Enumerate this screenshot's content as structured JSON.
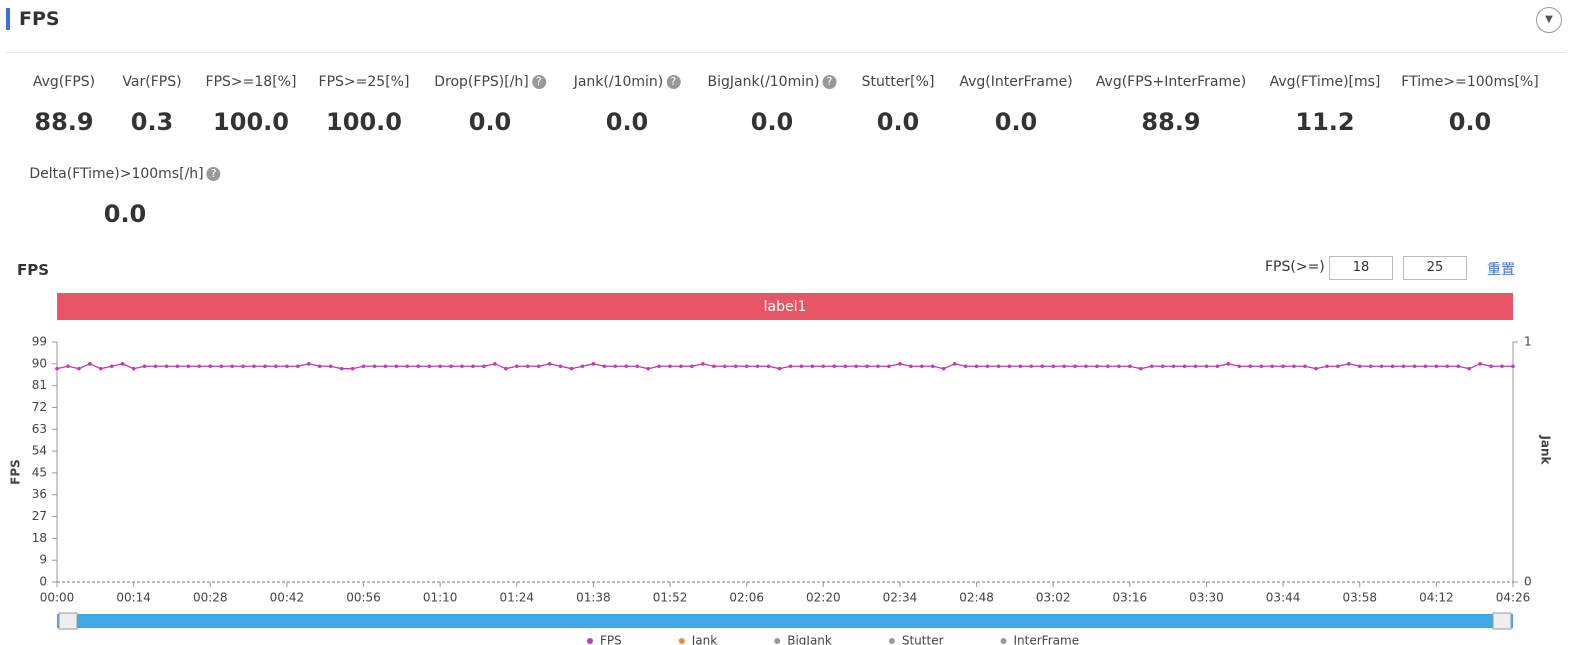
{
  "header": {
    "title": "FPS"
  },
  "metrics": [
    {
      "label": "Avg(FPS)",
      "value": "88.9"
    },
    {
      "label": "Var(FPS)",
      "value": "0.3"
    },
    {
      "label": "FPS>=18[%]",
      "value": "100.0"
    },
    {
      "label": "FPS>=25[%]",
      "value": "100.0"
    },
    {
      "label": "Drop(FPS)[/h]",
      "value": "0.0",
      "help": true
    },
    {
      "label": "Jank(/10min)",
      "value": "0.0",
      "help": true
    },
    {
      "label": "BigJank(/10min)",
      "value": "0.0",
      "help": true
    },
    {
      "label": "Stutter[%]",
      "value": "0.0"
    },
    {
      "label": "Avg(InterFrame)",
      "value": "0.0"
    },
    {
      "label": "Avg(FPS+InterFrame)",
      "value": "88.9"
    },
    {
      "label": "Avg(FTime)[ms]",
      "value": "11.2"
    },
    {
      "label": "FTime>=100ms[%]",
      "value": "0.0"
    },
    {
      "label": "Delta(FTime)>100ms[/h]",
      "value": "0.0",
      "help": true
    }
  ],
  "controls": {
    "title": "FPS",
    "threshold_label": "FPS(>=)",
    "threshold_low": "18",
    "threshold_high": "25",
    "reset": "重置"
  },
  "chart_data": {
    "type": "line",
    "band_label": "label1",
    "band_color": "#e85566",
    "ylabel": "FPS",
    "y2label": "Jank",
    "ylim": [
      0,
      99
    ],
    "yticks": [
      0,
      9,
      18,
      27,
      36,
      45,
      54,
      63,
      72,
      81,
      90,
      99
    ],
    "y2lim": [
      0,
      1
    ],
    "y2ticks": [
      0,
      1
    ],
    "xlim": [
      0,
      266
    ],
    "xticks": [
      {
        "value": 0,
        "label": "00:00"
      },
      {
        "value": 14,
        "label": "00:14"
      },
      {
        "value": 28,
        "label": "00:28"
      },
      {
        "value": 42,
        "label": "00:42"
      },
      {
        "value": 56,
        "label": "00:56"
      },
      {
        "value": 70,
        "label": "01:10"
      },
      {
        "value": 84,
        "label": "01:24"
      },
      {
        "value": 98,
        "label": "01:38"
      },
      {
        "value": 112,
        "label": "01:52"
      },
      {
        "value": 126,
        "label": "02:06"
      },
      {
        "value": 140,
        "label": "02:20"
      },
      {
        "value": 154,
        "label": "02:34"
      },
      {
        "value": 168,
        "label": "02:48"
      },
      {
        "value": 182,
        "label": "03:02"
      },
      {
        "value": 196,
        "label": "03:16"
      },
      {
        "value": 210,
        "label": "03:30"
      },
      {
        "value": 224,
        "label": "03:44"
      },
      {
        "value": 238,
        "label": "03:58"
      },
      {
        "value": 252,
        "label": "04:12"
      },
      {
        "value": 266,
        "label": "04:26"
      }
    ],
    "x": [
      0,
      2,
      4,
      6,
      8,
      10,
      12,
      14,
      16,
      18,
      20,
      22,
      24,
      26,
      28,
      30,
      32,
      34,
      36,
      38,
      40,
      42,
      44,
      46,
      48,
      50,
      52,
      54,
      56,
      58,
      60,
      62,
      64,
      66,
      68,
      70,
      72,
      74,
      76,
      78,
      80,
      82,
      84,
      86,
      88,
      90,
      92,
      94,
      96,
      98,
      100,
      102,
      104,
      106,
      108,
      110,
      112,
      114,
      116,
      118,
      120,
      122,
      124,
      126,
      128,
      130,
      132,
      134,
      136,
      138,
      140,
      142,
      144,
      146,
      148,
      150,
      152,
      154,
      156,
      158,
      160,
      162,
      164,
      166,
      168,
      170,
      172,
      174,
      176,
      178,
      180,
      182,
      184,
      186,
      188,
      190,
      192,
      194,
      196,
      198,
      200,
      202,
      204,
      206,
      208,
      210,
      212,
      214,
      216,
      218,
      220,
      222,
      224,
      226,
      228,
      230,
      232,
      234,
      236,
      238,
      240,
      242,
      244,
      246,
      248,
      250,
      252,
      254,
      256,
      258,
      260,
      262,
      264,
      266
    ],
    "series": [
      {
        "name": "FPS",
        "color": "#c23ab8",
        "values": [
          88,
          89,
          88,
          90,
          88,
          89,
          90,
          88,
          89,
          89,
          89,
          89,
          89,
          89,
          89,
          89,
          89,
          89,
          89,
          89,
          89,
          89,
          89,
          90,
          89,
          89,
          88,
          88,
          89,
          89,
          89,
          89,
          89,
          89,
          89,
          89,
          89,
          89,
          89,
          89,
          90,
          88,
          89,
          89,
          89,
          90,
          89,
          88,
          89,
          90,
          89,
          89,
          89,
          89,
          88,
          89,
          89,
          89,
          89,
          90,
          89,
          89,
          89,
          89,
          89,
          89,
          88,
          89,
          89,
          89,
          89,
          89,
          89,
          89,
          89,
          89,
          89,
          90,
          89,
          89,
          89,
          88,
          90,
          89,
          89,
          89,
          89,
          89,
          89,
          89,
          89,
          89,
          89,
          89,
          89,
          89,
          89,
          89,
          89,
          88,
          89,
          89,
          89,
          89,
          89,
          89,
          89,
          90,
          89,
          89,
          89,
          89,
          89,
          89,
          89,
          88,
          89,
          89,
          90,
          89,
          89,
          89,
          89,
          89,
          89,
          89,
          89,
          89,
          89,
          88,
          90,
          89,
          89,
          89
        ]
      }
    ],
    "legend": [
      {
        "name": "FPS",
        "color": "#c23ab8"
      },
      {
        "name": "Jank",
        "color": "#f08a3c"
      },
      {
        "name": "BigJank",
        "color": "#999999"
      },
      {
        "name": "Stutter",
        "color": "#999999"
      },
      {
        "name": "InterFrame",
        "color": "#999999"
      }
    ]
  }
}
